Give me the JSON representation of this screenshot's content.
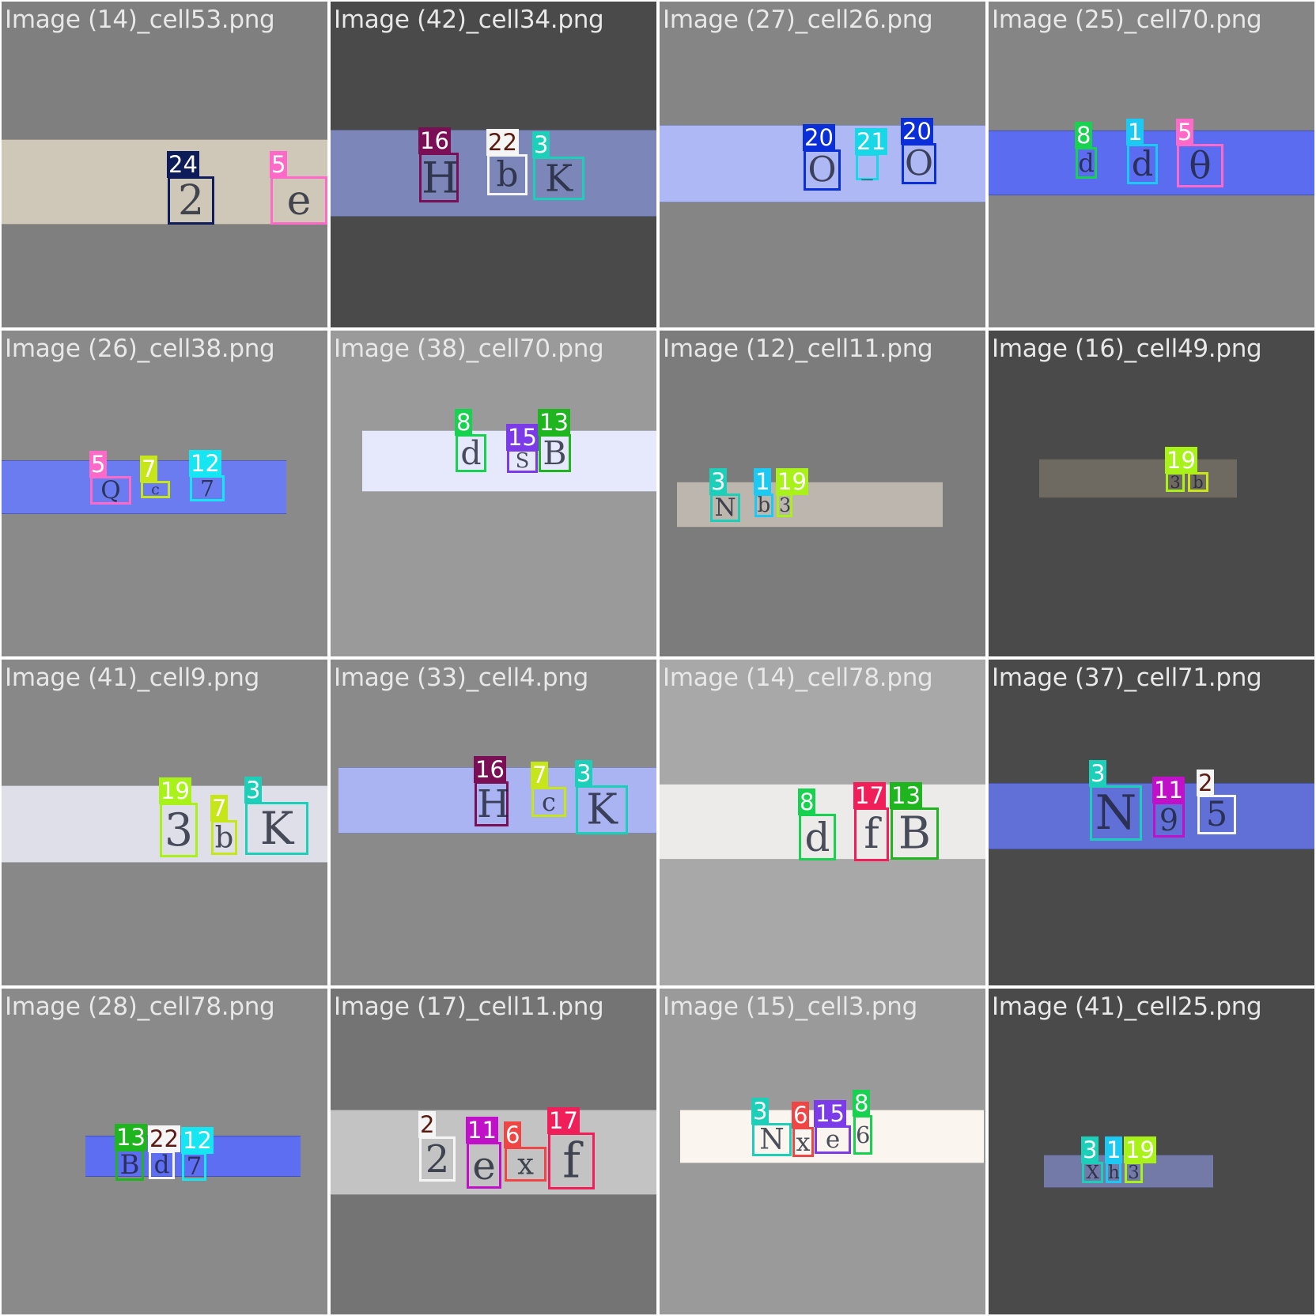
{
  "cells": [
    {
      "title": "Image (14)_cell53.png",
      "bg": "#7f7f7f",
      "strip": "#cfc7b8",
      "boxes": [
        {
          "label": "24",
          "color": "#0e1c5a",
          "glyph": "2"
        },
        {
          "label": "5",
          "color": "#ff69c8",
          "glyph": "e"
        }
      ]
    },
    {
      "title": "Image (42)_cell34.png",
      "bg": "#4a4a4a",
      "strip": "#7d86b8",
      "boxes": [
        {
          "label": "16",
          "color": "#7a0f55",
          "glyph": "H"
        },
        {
          "label": "22",
          "color": "#f5f5f5",
          "glyph": "b"
        },
        {
          "label": "3",
          "color": "#1ccfb8",
          "glyph": "K"
        }
      ]
    },
    {
      "title": "Image (27)_cell26.png",
      "bg": "#858585",
      "strip": "#aeb8f4",
      "boxes": [
        {
          "label": "20",
          "color": "#0a2ed8",
          "glyph": "O"
        },
        {
          "label": "21",
          "color": "#18d8e8",
          "glyph": "_"
        },
        {
          "label": "20",
          "color": "#0a2ed8",
          "glyph": "O"
        }
      ]
    },
    {
      "title": "Image (25)_cell70.png",
      "bg": "#858585",
      "strip": "#5b6cf0",
      "boxes": [
        {
          "label": "8",
          "color": "#17d24e",
          "glyph": "d"
        },
        {
          "label": "1",
          "color": "#1cc9f2",
          "glyph": "d"
        },
        {
          "label": "5",
          "color": "#ff69c8",
          "glyph": "θ"
        }
      ]
    },
    {
      "title": "Image (26)_cell38.png",
      "bg": "#8a8a8a",
      "strip": "#6b7cf0",
      "boxes": [
        {
          "label": "5",
          "color": "#ff69c8",
          "glyph": "Q"
        },
        {
          "label": "7",
          "color": "#c6e61a",
          "glyph": "c"
        },
        {
          "label": "12",
          "color": "#16e6f2",
          "glyph": "7"
        }
      ]
    },
    {
      "title": "Image (38)_cell70.png",
      "bg": "#9a9a9a",
      "strip": "#e6e8fb",
      "boxes": [
        {
          "label": "8",
          "color": "#17d24e",
          "glyph": "d"
        },
        {
          "label": "15",
          "color": "#7b3be8",
          "glyph": "S"
        },
        {
          "label": "13",
          "color": "#1fb51f",
          "glyph": "B"
        }
      ]
    },
    {
      "title": "Image (12)_cell11.png",
      "bg": "#7c7c7c",
      "strip": "#bcb6ae",
      "boxes": [
        {
          "label": "3",
          "color": "#1ccfb8",
          "glyph": "N"
        },
        {
          "label": "1",
          "color": "#1cc9f2",
          "glyph": "b"
        },
        {
          "label": "19",
          "color": "#a8f21a",
          "glyph": "3"
        }
      ]
    },
    {
      "title": "Image (16)_cell49.png",
      "bg": "#4a4a4a",
      "strip": "#6e6a62",
      "boxes": [
        {
          "label": "19",
          "color": "#a8f21a",
          "glyph": "3"
        },
        {
          "label": "",
          "color": "#c8e61a",
          "glyph": "b"
        }
      ]
    },
    {
      "title": "Image (41)_cell9.png",
      "bg": "#888888",
      "strip": "#dedfe8",
      "boxes": [
        {
          "label": "19",
          "color": "#a8f21a",
          "glyph": "3"
        },
        {
          "label": "7",
          "color": "#c6e61a",
          "glyph": "b"
        },
        {
          "label": "3",
          "color": "#1ccfb8",
          "glyph": "K"
        }
      ]
    },
    {
      "title": "Image (33)_cell4.png",
      "bg": "#8a8a8a",
      "strip": "#aab4f2",
      "boxes": [
        {
          "label": "16",
          "color": "#7a0f55",
          "glyph": "H"
        },
        {
          "label": "7",
          "color": "#c6e61a",
          "glyph": "c"
        },
        {
          "label": "3",
          "color": "#1ccfb8",
          "glyph": "K"
        }
      ]
    },
    {
      "title": "Image (14)_cell78.png",
      "bg": "#a8a8a8",
      "strip": "#ecebea",
      "boxes": [
        {
          "label": "8",
          "color": "#17d24e",
          "glyph": "d"
        },
        {
          "label": "17",
          "color": "#f01f5a",
          "glyph": "f"
        },
        {
          "label": "13",
          "color": "#1fb51f",
          "glyph": "B"
        }
      ]
    },
    {
      "title": "Image (37)_cell71.png",
      "bg": "#4a4a4a",
      "strip": "#6170d6",
      "boxes": [
        {
          "label": "3",
          "color": "#1ccfb8",
          "glyph": "N"
        },
        {
          "label": "11",
          "color": "#c010c8",
          "glyph": "9"
        },
        {
          "label": "2",
          "color": "#f5f5f5",
          "glyph": "5"
        }
      ]
    },
    {
      "title": "Image (28)_cell78.png",
      "bg": "#8a8a8a",
      "strip": "#5e6ef2",
      "boxes": [
        {
          "label": "13",
          "color": "#1fb51f",
          "glyph": "B"
        },
        {
          "label": "22",
          "color": "#f5f5f5",
          "glyph": "d"
        },
        {
          "label": "12",
          "color": "#16e6f2",
          "glyph": "7"
        }
      ]
    },
    {
      "title": "Image (17)_cell11.png",
      "bg": "#747474",
      "strip": "#c3c3c3",
      "boxes": [
        {
          "label": "2",
          "color": "#f5f5f5",
          "glyph": "2"
        },
        {
          "label": "11",
          "color": "#c010c8",
          "glyph": "e"
        },
        {
          "label": "6",
          "color": "#f04545",
          "glyph": "x"
        },
        {
          "label": "17",
          "color": "#f01f5a",
          "glyph": "f"
        }
      ]
    },
    {
      "title": "Image (15)_cell3.png",
      "bg": "#9a9a9a",
      "strip": "#fbf5ef",
      "boxes": [
        {
          "label": "3",
          "color": "#1ccfb8",
          "glyph": "N"
        },
        {
          "label": "6",
          "color": "#f04545",
          "glyph": "x"
        },
        {
          "label": "15",
          "color": "#7b3be8",
          "glyph": "e"
        },
        {
          "label": "8",
          "color": "#17d24e",
          "glyph": "6"
        }
      ]
    },
    {
      "title": "Image (41)_cell25.png",
      "bg": "#4a4a4a",
      "strip": "#747aa8",
      "boxes": [
        {
          "label": "3",
          "color": "#1ccfb8",
          "glyph": "X"
        },
        {
          "label": "1",
          "color": "#1cc9f2",
          "glyph": "h"
        },
        {
          "label": "19",
          "color": "#a8f21a",
          "glyph": "3"
        }
      ]
    }
  ]
}
